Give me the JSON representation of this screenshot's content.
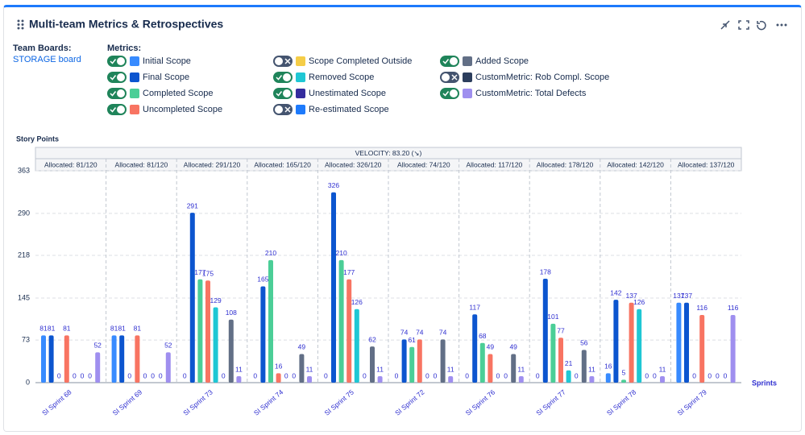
{
  "header": {
    "title": "Multi-team Metrics & Retrospectives"
  },
  "team_boards": {
    "label": "Team Boards:",
    "board": "STORAGE board"
  },
  "metrics_label": "Metrics:",
  "chart_data": {
    "type": "bar",
    "velocity_label": "VELOCITY: 83.20 (↘)",
    "ylabel": "Story Points",
    "xlabel": "Sprints",
    "categories": [
      "SI Sprint 68",
      "SI Sprint 69",
      "SI Sprint 73",
      "SI Sprint 74",
      "SI Sprint 75",
      "SI Sprint 72",
      "SI Sprint 76",
      "SI Sprint 77",
      "SI Sprint 78",
      "SI Sprint 79"
    ],
    "group_labels": [
      "Allocated: 81/120",
      "Allocated: 81/120",
      "Allocated: 291/120",
      "Allocated: 165/120",
      "Allocated: 326/120",
      "Allocated: 74/120",
      "Allocated: 117/120",
      "Allocated: 178/120",
      "Allocated: 142/120",
      "Allocated: 137/120"
    ],
    "ylim": [
      0,
      363
    ],
    "yticks": [
      0,
      73,
      145,
      218,
      290,
      363
    ],
    "grid": true,
    "series": [
      {
        "name": "Initial Scope",
        "color": "#388bff",
        "enabled": true,
        "values": [
          81,
          81,
          0,
          0,
          0,
          0,
          0,
          0,
          16,
          137
        ]
      },
      {
        "name": "Final Scope",
        "color": "#0c55cf",
        "enabled": true,
        "values": [
          81,
          81,
          291,
          165,
          326,
          74,
          117,
          178,
          142,
          137
        ]
      },
      {
        "name": "Completed Scope",
        "color": "#4bce97",
        "enabled": true,
        "values": [
          0,
          0,
          177,
          210,
          210,
          61,
          68,
          101,
          5,
          0
        ]
      },
      {
        "name": "Uncompleted Scope",
        "color": "#f87462",
        "enabled": true,
        "values": [
          81,
          81,
          175,
          16,
          177,
          74,
          49,
          77,
          137,
          116
        ]
      },
      {
        "name": "Scope Completed Outside",
        "color": "#f5cd47",
        "enabled": false
      },
      {
        "name": "Removed Scope",
        "color": "#1fc7d4",
        "enabled": true,
        "values": [
          0,
          0,
          129,
          0,
          126,
          0,
          0,
          21,
          126,
          0
        ]
      },
      {
        "name": "Unestimated Scope",
        "color": "#352c9e",
        "enabled": true,
        "values": [
          0,
          0,
          0,
          0,
          0,
          0,
          0,
          0,
          0,
          0
        ]
      },
      {
        "name": "Re-estimated Scope",
        "color": "#1d7afc",
        "enabled": false
      },
      {
        "name": "Added Scope",
        "color": "#626f86",
        "enabled": true,
        "values": [
          0,
          0,
          108,
          49,
          62,
          74,
          49,
          56,
          0,
          0
        ]
      },
      {
        "name": "CustomMetric: Rob Compl. Scope",
        "color": "#2c3e5d",
        "enabled": false
      },
      {
        "name": "CustomMetric: Total Defects",
        "color": "#9f8fef",
        "enabled": true,
        "values": [
          52,
          52,
          11,
          11,
          11,
          11,
          11,
          11,
          11,
          116
        ]
      }
    ]
  }
}
